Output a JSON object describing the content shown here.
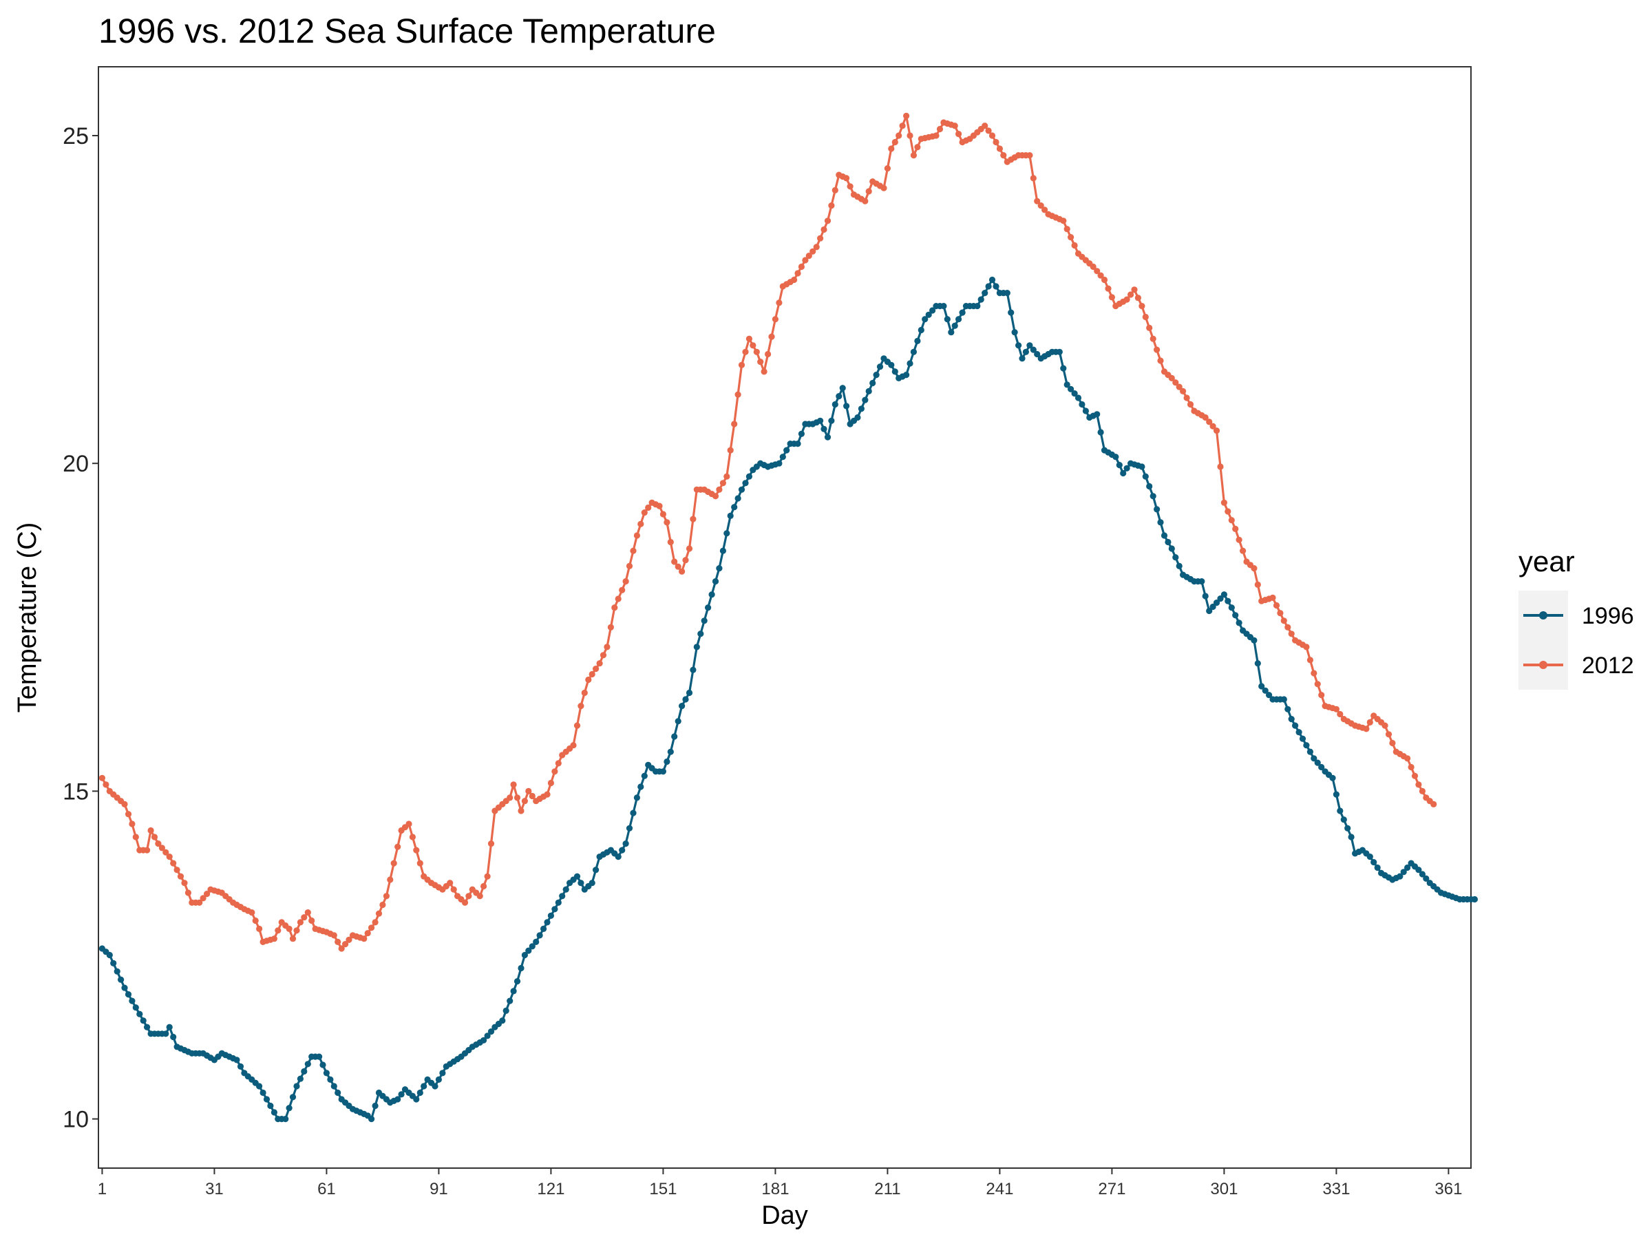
{
  "chart_data": {
    "type": "line",
    "title": "1996 vs. 2012 Sea Surface Temperature",
    "xlabel": "Day",
    "ylabel": "Temperature (C)",
    "xlim": [
      0,
      367
    ],
    "ylim": [
      9.25,
      26.05
    ],
    "x_ticks": [
      1,
      31,
      61,
      91,
      121,
      151,
      181,
      211,
      241,
      271,
      301,
      331,
      361
    ],
    "y_ticks": [
      10,
      15,
      20,
      25
    ],
    "grid": false,
    "legend": {
      "title": "year",
      "position": "right"
    },
    "series": [
      {
        "name": "1996",
        "color": "#0b5c7d",
        "keypoints": [
          [
            1,
            12.6
          ],
          [
            3,
            12.5
          ],
          [
            7,
            12.0
          ],
          [
            11,
            11.6
          ],
          [
            14,
            11.3
          ],
          [
            18,
            11.3
          ],
          [
            19,
            11.4
          ],
          [
            21,
            11.1
          ],
          [
            25,
            11.0
          ],
          [
            28,
            11.0
          ],
          [
            31,
            10.9
          ],
          [
            33,
            11.0
          ],
          [
            37,
            10.9
          ],
          [
            39,
            10.7
          ],
          [
            43,
            10.5
          ],
          [
            45,
            10.3
          ],
          [
            48,
            10.0
          ],
          [
            50,
            10.0
          ],
          [
            53,
            10.5
          ],
          [
            57,
            10.95
          ],
          [
            59,
            10.95
          ],
          [
            61,
            10.7
          ],
          [
            65,
            10.3
          ],
          [
            68,
            10.15
          ],
          [
            72,
            10.05
          ],
          [
            73,
            10.0
          ],
          [
            75,
            10.4
          ],
          [
            78,
            10.25
          ],
          [
            80,
            10.3
          ],
          [
            82,
            10.45
          ],
          [
            85,
            10.3
          ],
          [
            88,
            10.6
          ],
          [
            90,
            10.5
          ],
          [
            93,
            10.8
          ],
          [
            97,
            10.95
          ],
          [
            100,
            11.1
          ],
          [
            103,
            11.2
          ],
          [
            106,
            11.4
          ],
          [
            108,
            11.5
          ],
          [
            112,
            12.1
          ],
          [
            114,
            12.5
          ],
          [
            117,
            12.7
          ],
          [
            120,
            13.0
          ],
          [
            123,
            13.3
          ],
          [
            126,
            13.6
          ],
          [
            128,
            13.7
          ],
          [
            130,
            13.5
          ],
          [
            132,
            13.6
          ],
          [
            134,
            14.0
          ],
          [
            137,
            14.1
          ],
          [
            139,
            14.0
          ],
          [
            141,
            14.2
          ],
          [
            144,
            14.9
          ],
          [
            147,
            15.4
          ],
          [
            149,
            15.3
          ],
          [
            151,
            15.3
          ],
          [
            153,
            15.6
          ],
          [
            156,
            16.3
          ],
          [
            158,
            16.5
          ],
          [
            160,
            17.2
          ],
          [
            163,
            17.8
          ],
          [
            166,
            18.4
          ],
          [
            169,
            19.2
          ],
          [
            172,
            19.6
          ],
          [
            175,
            19.9
          ],
          [
            177,
            20.0
          ],
          [
            179,
            19.95
          ],
          [
            182,
            20.0
          ],
          [
            185,
            20.3
          ],
          [
            187,
            20.3
          ],
          [
            189,
            20.6
          ],
          [
            191,
            20.6
          ],
          [
            193,
            20.65
          ],
          [
            195,
            20.4
          ],
          [
            197,
            20.9
          ],
          [
            199,
            21.15
          ],
          [
            201,
            20.6
          ],
          [
            203,
            20.7
          ],
          [
            206,
            21.1
          ],
          [
            210,
            21.6
          ],
          [
            212,
            21.5
          ],
          [
            214,
            21.3
          ],
          [
            216,
            21.35
          ],
          [
            218,
            21.7
          ],
          [
            221,
            22.2
          ],
          [
            224,
            22.4
          ],
          [
            226,
            22.4
          ],
          [
            228,
            22.0
          ],
          [
            230,
            22.2
          ],
          [
            232,
            22.4
          ],
          [
            235,
            22.4
          ],
          [
            239,
            22.8
          ],
          [
            241,
            22.6
          ],
          [
            243,
            22.6
          ],
          [
            245,
            22.0
          ],
          [
            247,
            21.6
          ],
          [
            249,
            21.8
          ],
          [
            252,
            21.6
          ],
          [
            255,
            21.7
          ],
          [
            257,
            21.7
          ],
          [
            259,
            21.2
          ],
          [
            262,
            21.0
          ],
          [
            265,
            20.7
          ],
          [
            267,
            20.75
          ],
          [
            269,
            20.2
          ],
          [
            272,
            20.1
          ],
          [
            274,
            19.85
          ],
          [
            276,
            20.0
          ],
          [
            279,
            19.95
          ],
          [
            282,
            19.5
          ],
          [
            285,
            18.9
          ],
          [
            287,
            18.7
          ],
          [
            290,
            18.3
          ],
          [
            293,
            18.2
          ],
          [
            295,
            18.2
          ],
          [
            297,
            17.75
          ],
          [
            301,
            18.0
          ],
          [
            303,
            17.8
          ],
          [
            306,
            17.45
          ],
          [
            309,
            17.3
          ],
          [
            311,
            16.6
          ],
          [
            314,
            16.4
          ],
          [
            317,
            16.4
          ],
          [
            319,
            16.1
          ],
          [
            322,
            15.8
          ],
          [
            325,
            15.5
          ],
          [
            328,
            15.3
          ],
          [
            330,
            15.2
          ],
          [
            332,
            14.7
          ],
          [
            335,
            14.3
          ],
          [
            336,
            14.05
          ],
          [
            338,
            14.1
          ],
          [
            340,
            14.0
          ],
          [
            343,
            13.75
          ],
          [
            346,
            13.65
          ],
          [
            348,
            13.7
          ],
          [
            351,
            13.9
          ],
          [
            353,
            13.8
          ],
          [
            356,
            13.6
          ],
          [
            359,
            13.45
          ],
          [
            364,
            13.35
          ],
          [
            368,
            13.35
          ]
        ]
      },
      {
        "name": "2012",
        "color": "#e8684c",
        "keypoints": [
          [
            1,
            15.2
          ],
          [
            3,
            15.0
          ],
          [
            5,
            14.9
          ],
          [
            7,
            14.8
          ],
          [
            9,
            14.5
          ],
          [
            11,
            14.1
          ],
          [
            13,
            14.1
          ],
          [
            14,
            14.4
          ],
          [
            16,
            14.2
          ],
          [
            19,
            14.0
          ],
          [
            21,
            13.8
          ],
          [
            23,
            13.6
          ],
          [
            25,
            13.3
          ],
          [
            27,
            13.3
          ],
          [
            30,
            13.5
          ],
          [
            33,
            13.45
          ],
          [
            36,
            13.3
          ],
          [
            39,
            13.2
          ],
          [
            41,
            13.15
          ],
          [
            43,
            12.9
          ],
          [
            44,
            12.7
          ],
          [
            47,
            12.75
          ],
          [
            49,
            13.0
          ],
          [
            51,
            12.9
          ],
          [
            52,
            12.75
          ],
          [
            54,
            13.0
          ],
          [
            56,
            13.15
          ],
          [
            58,
            12.9
          ],
          [
            61,
            12.85
          ],
          [
            63,
            12.8
          ],
          [
            65,
            12.6
          ],
          [
            68,
            12.8
          ],
          [
            71,
            12.75
          ],
          [
            74,
            13.0
          ],
          [
            77,
            13.4
          ],
          [
            79,
            13.9
          ],
          [
            81,
            14.4
          ],
          [
            83,
            14.5
          ],
          [
            85,
            14.1
          ],
          [
            87,
            13.7
          ],
          [
            89,
            13.6
          ],
          [
            92,
            13.5
          ],
          [
            94,
            13.6
          ],
          [
            96,
            13.4
          ],
          [
            98,
            13.3
          ],
          [
            100,
            13.5
          ],
          [
            102,
            13.4
          ],
          [
            104,
            13.7
          ],
          [
            106,
            14.7
          ],
          [
            108,
            14.8
          ],
          [
            110,
            14.9
          ],
          [
            111,
            15.1
          ],
          [
            113,
            14.7
          ],
          [
            115,
            15.0
          ],
          [
            117,
            14.85
          ],
          [
            120,
            14.95
          ],
          [
            122,
            15.3
          ],
          [
            124,
            15.55
          ],
          [
            127,
            15.7
          ],
          [
            129,
            16.3
          ],
          [
            131,
            16.7
          ],
          [
            134,
            16.95
          ],
          [
            136,
            17.2
          ],
          [
            138,
            17.8
          ],
          [
            141,
            18.2
          ],
          [
            144,
            18.9
          ],
          [
            146,
            19.25
          ],
          [
            148,
            19.4
          ],
          [
            150,
            19.35
          ],
          [
            152,
            19.1
          ],
          [
            154,
            18.5
          ],
          [
            156,
            18.35
          ],
          [
            158,
            18.7
          ],
          [
            160,
            19.6
          ],
          [
            162,
            19.6
          ],
          [
            165,
            19.5
          ],
          [
            168,
            19.8
          ],
          [
            170,
            20.6
          ],
          [
            172,
            21.5
          ],
          [
            174,
            21.9
          ],
          [
            176,
            21.7
          ],
          [
            178,
            21.4
          ],
          [
            181,
            22.2
          ],
          [
            183,
            22.7
          ],
          [
            186,
            22.8
          ],
          [
            189,
            23.1
          ],
          [
            192,
            23.3
          ],
          [
            195,
            23.7
          ],
          [
            198,
            24.4
          ],
          [
            200,
            24.35
          ],
          [
            202,
            24.1
          ],
          [
            205,
            24.0
          ],
          [
            207,
            24.3
          ],
          [
            210,
            24.2
          ],
          [
            212,
            24.8
          ],
          [
            214,
            25.0
          ],
          [
            216,
            25.3
          ],
          [
            218,
            24.7
          ],
          [
            220,
            24.95
          ],
          [
            224,
            25.0
          ],
          [
            226,
            25.2
          ],
          [
            229,
            25.15
          ],
          [
            231,
            24.9
          ],
          [
            233,
            24.95
          ],
          [
            237,
            25.15
          ],
          [
            239,
            25.0
          ],
          [
            241,
            24.8
          ],
          [
            243,
            24.6
          ],
          [
            246,
            24.7
          ],
          [
            249,
            24.7
          ],
          [
            251,
            24.0
          ],
          [
            254,
            23.8
          ],
          [
            258,
            23.7
          ],
          [
            262,
            23.2
          ],
          [
            266,
            23.0
          ],
          [
            269,
            22.8
          ],
          [
            272,
            22.4
          ],
          [
            275,
            22.5
          ],
          [
            277,
            22.65
          ],
          [
            279,
            22.4
          ],
          [
            282,
            21.9
          ],
          [
            285,
            21.4
          ],
          [
            287,
            21.3
          ],
          [
            290,
            21.1
          ],
          [
            293,
            20.8
          ],
          [
            296,
            20.7
          ],
          [
            299,
            20.5
          ],
          [
            301,
            19.4
          ],
          [
            304,
            19.0
          ],
          [
            307,
            18.5
          ],
          [
            309,
            18.4
          ],
          [
            311,
            17.9
          ],
          [
            314,
            17.95
          ],
          [
            317,
            17.6
          ],
          [
            320,
            17.3
          ],
          [
            323,
            17.2
          ],
          [
            325,
            16.8
          ],
          [
            328,
            16.3
          ],
          [
            331,
            16.25
          ],
          [
            333,
            16.1
          ],
          [
            336,
            16.0
          ],
          [
            339,
            15.95
          ],
          [
            341,
            16.15
          ],
          [
            344,
            16.0
          ],
          [
            347,
            15.6
          ],
          [
            350,
            15.5
          ],
          [
            353,
            15.1
          ],
          [
            355,
            14.9
          ],
          [
            357,
            14.8
          ]
        ]
      }
    ]
  }
}
